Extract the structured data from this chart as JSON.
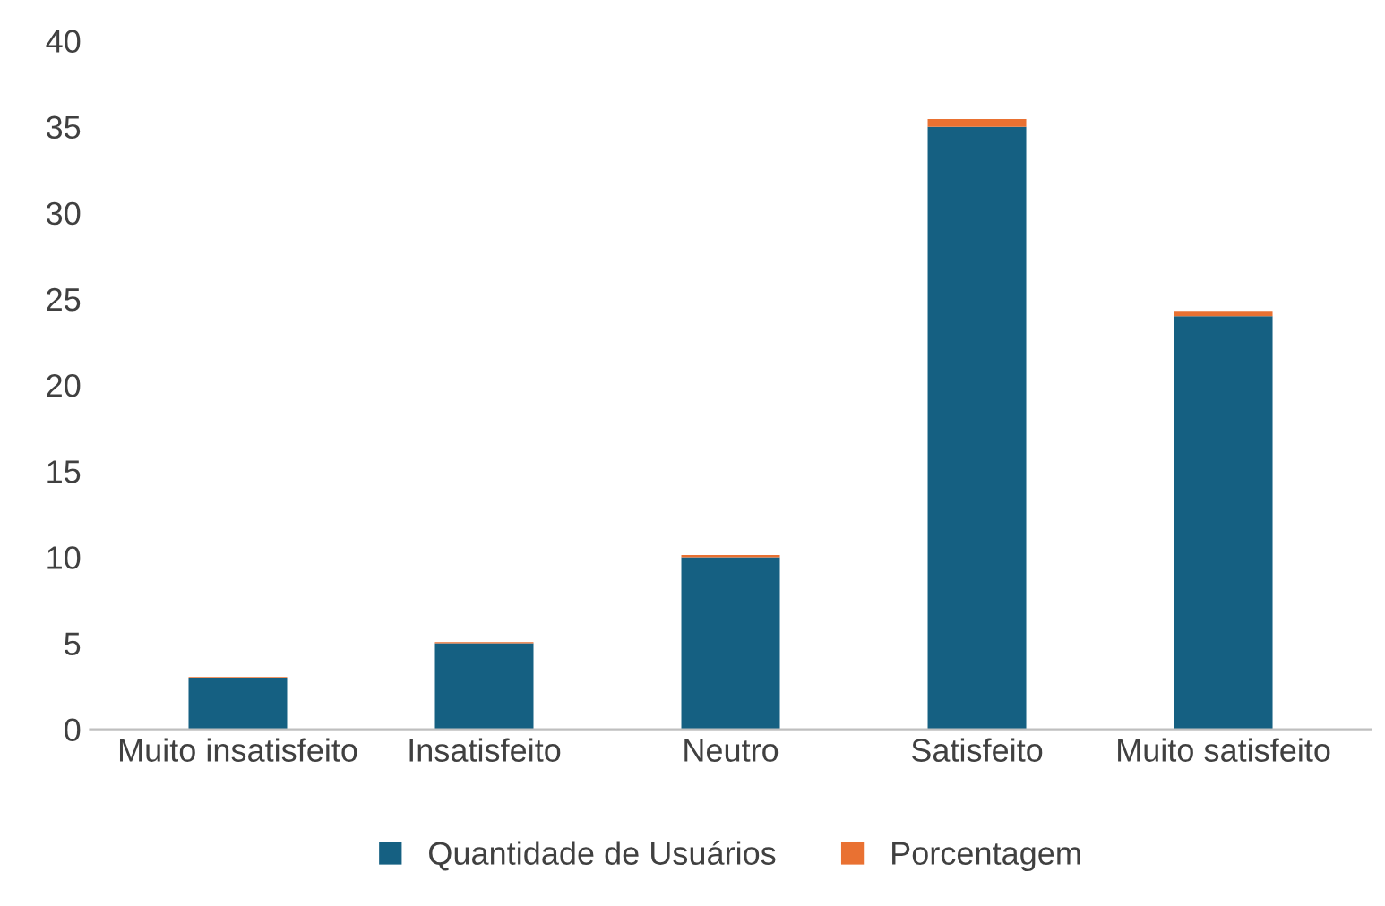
{
  "chart_data": {
    "type": "bar",
    "stacked": true,
    "categories": [
      "Muito insatisfeito",
      "Insatisfeito",
      "Neutro",
      "Satisfeito",
      "Muito satisfeito"
    ],
    "series": [
      {
        "name": "Quantidade de Usuários",
        "color": "#156082",
        "values": [
          3,
          5,
          10,
          35,
          24
        ]
      },
      {
        "name": "Porcentagem",
        "color": "#e97132",
        "values": [
          0.04,
          0.06,
          0.13,
          0.45,
          0.31
        ]
      }
    ],
    "ylim": [
      0,
      40
    ],
    "yticks": [
      0,
      5,
      10,
      15,
      20,
      25,
      30,
      35,
      40
    ],
    "grid": false,
    "legend": "bottom"
  }
}
